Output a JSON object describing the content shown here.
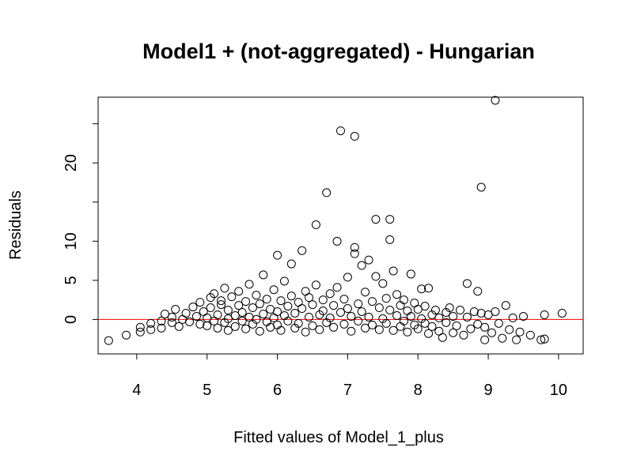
{
  "chart_data": {
    "type": "scatter",
    "title": "Model1 + (not-aggregated) - Hungarian",
    "xlabel": "Fitted values of Model_1_plus",
    "ylabel": "Residuals",
    "xlim": [
      3.45,
      10.35
    ],
    "ylim": [
      -4.4,
      28.4
    ],
    "x_ticks": [
      4,
      5,
      6,
      7,
      8,
      9,
      10
    ],
    "x_tick_labels": [
      "4",
      "5",
      "6",
      "7",
      "8",
      "9",
      "10"
    ],
    "y_ticks": [
      0,
      5,
      10,
      15,
      20,
      25
    ],
    "y_tick_labels": [
      "0",
      "5",
      "10",
      "",
      "20",
      ""
    ],
    "grid": false,
    "legend": "none",
    "reference_line": {
      "y": 0,
      "color": "#ff0000"
    },
    "marker": "open-circle",
    "series": [
      {
        "points": [
          [
            3.6,
            -2.7
          ],
          [
            3.85,
            -2.0
          ],
          [
            4.05,
            -1.6
          ],
          [
            4.05,
            -1.0
          ],
          [
            4.2,
            -1.3
          ],
          [
            4.2,
            -0.5
          ],
          [
            4.35,
            -1.1
          ],
          [
            4.35,
            -0.2
          ],
          [
            4.4,
            0.7
          ],
          [
            4.5,
            -0.4
          ],
          [
            4.5,
            0.3
          ],
          [
            4.55,
            1.3
          ],
          [
            4.6,
            -0.9
          ],
          [
            4.65,
            0.0
          ],
          [
            4.7,
            0.8
          ],
          [
            4.75,
            -0.3
          ],
          [
            4.8,
            1.6
          ],
          [
            4.85,
            0.4
          ],
          [
            4.9,
            -0.6
          ],
          [
            4.9,
            2.2
          ],
          [
            4.95,
            1.0
          ],
          [
            5.0,
            -0.8
          ],
          [
            5.0,
            0.2
          ],
          [
            5.05,
            2.8
          ],
          [
            5.05,
            1.5
          ],
          [
            5.1,
            -0.2
          ],
          [
            5.1,
            3.3
          ],
          [
            5.15,
            0.6
          ],
          [
            5.15,
            -1.1
          ],
          [
            5.2,
            1.9
          ],
          [
            5.2,
            2.4
          ],
          [
            5.25,
            -0.4
          ],
          [
            5.25,
            4.0
          ],
          [
            5.3,
            1.2
          ],
          [
            5.3,
            0.1
          ],
          [
            5.3,
            -1.4
          ],
          [
            5.35,
            2.9
          ],
          [
            5.4,
            0.5
          ],
          [
            5.4,
            -0.9
          ],
          [
            5.45,
            1.8
          ],
          [
            5.45,
            3.6
          ],
          [
            5.5,
            -0.2
          ],
          [
            5.5,
            0.9
          ],
          [
            5.55,
            2.3
          ],
          [
            5.55,
            -1.2
          ],
          [
            5.6,
            4.5
          ],
          [
            5.6,
            0.3
          ],
          [
            5.65,
            1.5
          ],
          [
            5.65,
            -0.6
          ],
          [
            5.7,
            3.1
          ],
          [
            5.7,
            0.0
          ],
          [
            5.75,
            2.0
          ],
          [
            5.75,
            -1.5
          ],
          [
            5.8,
            5.7
          ],
          [
            5.8,
            0.7
          ],
          [
            5.85,
            -0.3
          ],
          [
            5.85,
            2.6
          ],
          [
            5.9,
            1.3
          ],
          [
            5.9,
            -1.0
          ],
          [
            5.95,
            3.8
          ],
          [
            5.95,
            0.2
          ],
          [
            6.0,
            8.2
          ],
          [
            6.0,
            1.0
          ],
          [
            6.0,
            -0.7
          ],
          [
            6.05,
            2.4
          ],
          [
            6.05,
            -1.4
          ],
          [
            6.1,
            4.9
          ],
          [
            6.1,
            0.5
          ],
          [
            6.15,
            1.7
          ],
          [
            6.15,
            -0.2
          ],
          [
            6.2,
            7.1
          ],
          [
            6.2,
            3.0
          ],
          [
            6.25,
            -1.1
          ],
          [
            6.25,
            0.8
          ],
          [
            6.3,
            2.2
          ],
          [
            6.3,
            -0.5
          ],
          [
            6.35,
            8.8
          ],
          [
            6.35,
            1.4
          ],
          [
            6.4,
            3.6
          ],
          [
            6.4,
            -1.6
          ],
          [
            6.45,
            0.3
          ],
          [
            6.45,
            2.8
          ],
          [
            6.5,
            -0.8
          ],
          [
            6.5,
            1.9
          ],
          [
            6.55,
            4.4
          ],
          [
            6.55,
            12.1
          ],
          [
            6.6,
            0.6
          ],
          [
            6.6,
            -1.3
          ],
          [
            6.65,
            2.5
          ],
          [
            6.65,
            1.1
          ],
          [
            6.7,
            16.2
          ],
          [
            6.7,
            -0.4
          ],
          [
            6.75,
            3.3
          ],
          [
            6.75,
            0.2
          ],
          [
            6.8,
            1.8
          ],
          [
            6.8,
            -1.0
          ],
          [
            6.85,
            10.0
          ],
          [
            6.85,
            4.1
          ],
          [
            6.9,
            24.1
          ],
          [
            6.9,
            0.9
          ],
          [
            6.95,
            -0.6
          ],
          [
            6.95,
            2.6
          ],
          [
            7.0,
            5.4
          ],
          [
            7.0,
            1.4
          ],
          [
            7.05,
            -1.5
          ],
          [
            7.05,
            0.4
          ],
          [
            7.1,
            23.4
          ],
          [
            7.1,
            9.2
          ],
          [
            7.1,
            8.4
          ],
          [
            7.15,
            2.0
          ],
          [
            7.15,
            -0.2
          ],
          [
            7.2,
            6.9
          ],
          [
            7.2,
            1.0
          ],
          [
            7.25,
            -1.1
          ],
          [
            7.25,
            3.5
          ],
          [
            7.3,
            7.6
          ],
          [
            7.3,
            0.3
          ],
          [
            7.35,
            2.3
          ],
          [
            7.35,
            -0.7
          ],
          [
            7.4,
            12.8
          ],
          [
            7.4,
            5.5
          ],
          [
            7.45,
            1.5
          ],
          [
            7.45,
            -1.3
          ],
          [
            7.5,
            4.6
          ],
          [
            7.5,
            0.1
          ],
          [
            7.55,
            2.7
          ],
          [
            7.55,
            -0.5
          ],
          [
            7.6,
            10.2
          ],
          [
            7.6,
            12.8
          ],
          [
            7.6,
            1.2
          ],
          [
            7.65,
            6.2
          ],
          [
            7.65,
            -1.4
          ],
          [
            7.7,
            3.2
          ],
          [
            7.7,
            0.5
          ],
          [
            7.75,
            1.8
          ],
          [
            7.75,
            -0.9
          ],
          [
            7.8,
            2.5
          ],
          [
            7.8,
            -0.2
          ],
          [
            7.85,
            1.1
          ],
          [
            7.85,
            -1.6
          ],
          [
            7.9,
            5.8
          ],
          [
            7.9,
            0.4
          ],
          [
            7.95,
            2.1
          ],
          [
            7.95,
            -0.7
          ],
          [
            8.0,
            1.3
          ],
          [
            8.0,
            -1.2
          ],
          [
            8.05,
            3.9
          ],
          [
            8.05,
            0.1
          ],
          [
            8.1,
            -0.5
          ],
          [
            8.1,
            1.7
          ],
          [
            8.15,
            4.0
          ],
          [
            8.15,
            -1.8
          ],
          [
            8.2,
            0.6
          ],
          [
            8.2,
            -0.9
          ],
          [
            8.25,
            1.2
          ],
          [
            8.3,
            -1.5
          ],
          [
            8.3,
            0.2
          ],
          [
            8.35,
            -2.3
          ],
          [
            8.4,
            0.9
          ],
          [
            8.4,
            -0.4
          ],
          [
            8.45,
            1.5
          ],
          [
            8.5,
            -1.7
          ],
          [
            8.5,
            0.4
          ],
          [
            8.55,
            -0.8
          ],
          [
            8.6,
            1.2
          ],
          [
            8.65,
            -2.0
          ],
          [
            8.7,
            4.6
          ],
          [
            8.7,
            0.3
          ],
          [
            8.75,
            -1.2
          ],
          [
            8.8,
            1.0
          ],
          [
            8.85,
            3.6
          ],
          [
            8.85,
            -0.6
          ],
          [
            8.9,
            16.9
          ],
          [
            8.9,
            0.8
          ],
          [
            8.95,
            -2.6
          ],
          [
            8.95,
            -1.0
          ],
          [
            9.0,
            0.6
          ],
          [
            9.05,
            -1.7
          ],
          [
            9.1,
            28.0
          ],
          [
            9.1,
            1.0
          ],
          [
            9.15,
            -0.5
          ],
          [
            9.2,
            -2.4
          ],
          [
            9.25,
            1.8
          ],
          [
            9.3,
            -1.3
          ],
          [
            9.35,
            0.2
          ],
          [
            9.4,
            -2.6
          ],
          [
            9.45,
            -1.6
          ],
          [
            9.5,
            0.4
          ],
          [
            9.6,
            -2.0
          ],
          [
            9.75,
            -2.6
          ],
          [
            9.8,
            0.6
          ],
          [
            9.8,
            -2.5
          ],
          [
            10.05,
            0.8
          ]
        ]
      }
    ]
  }
}
